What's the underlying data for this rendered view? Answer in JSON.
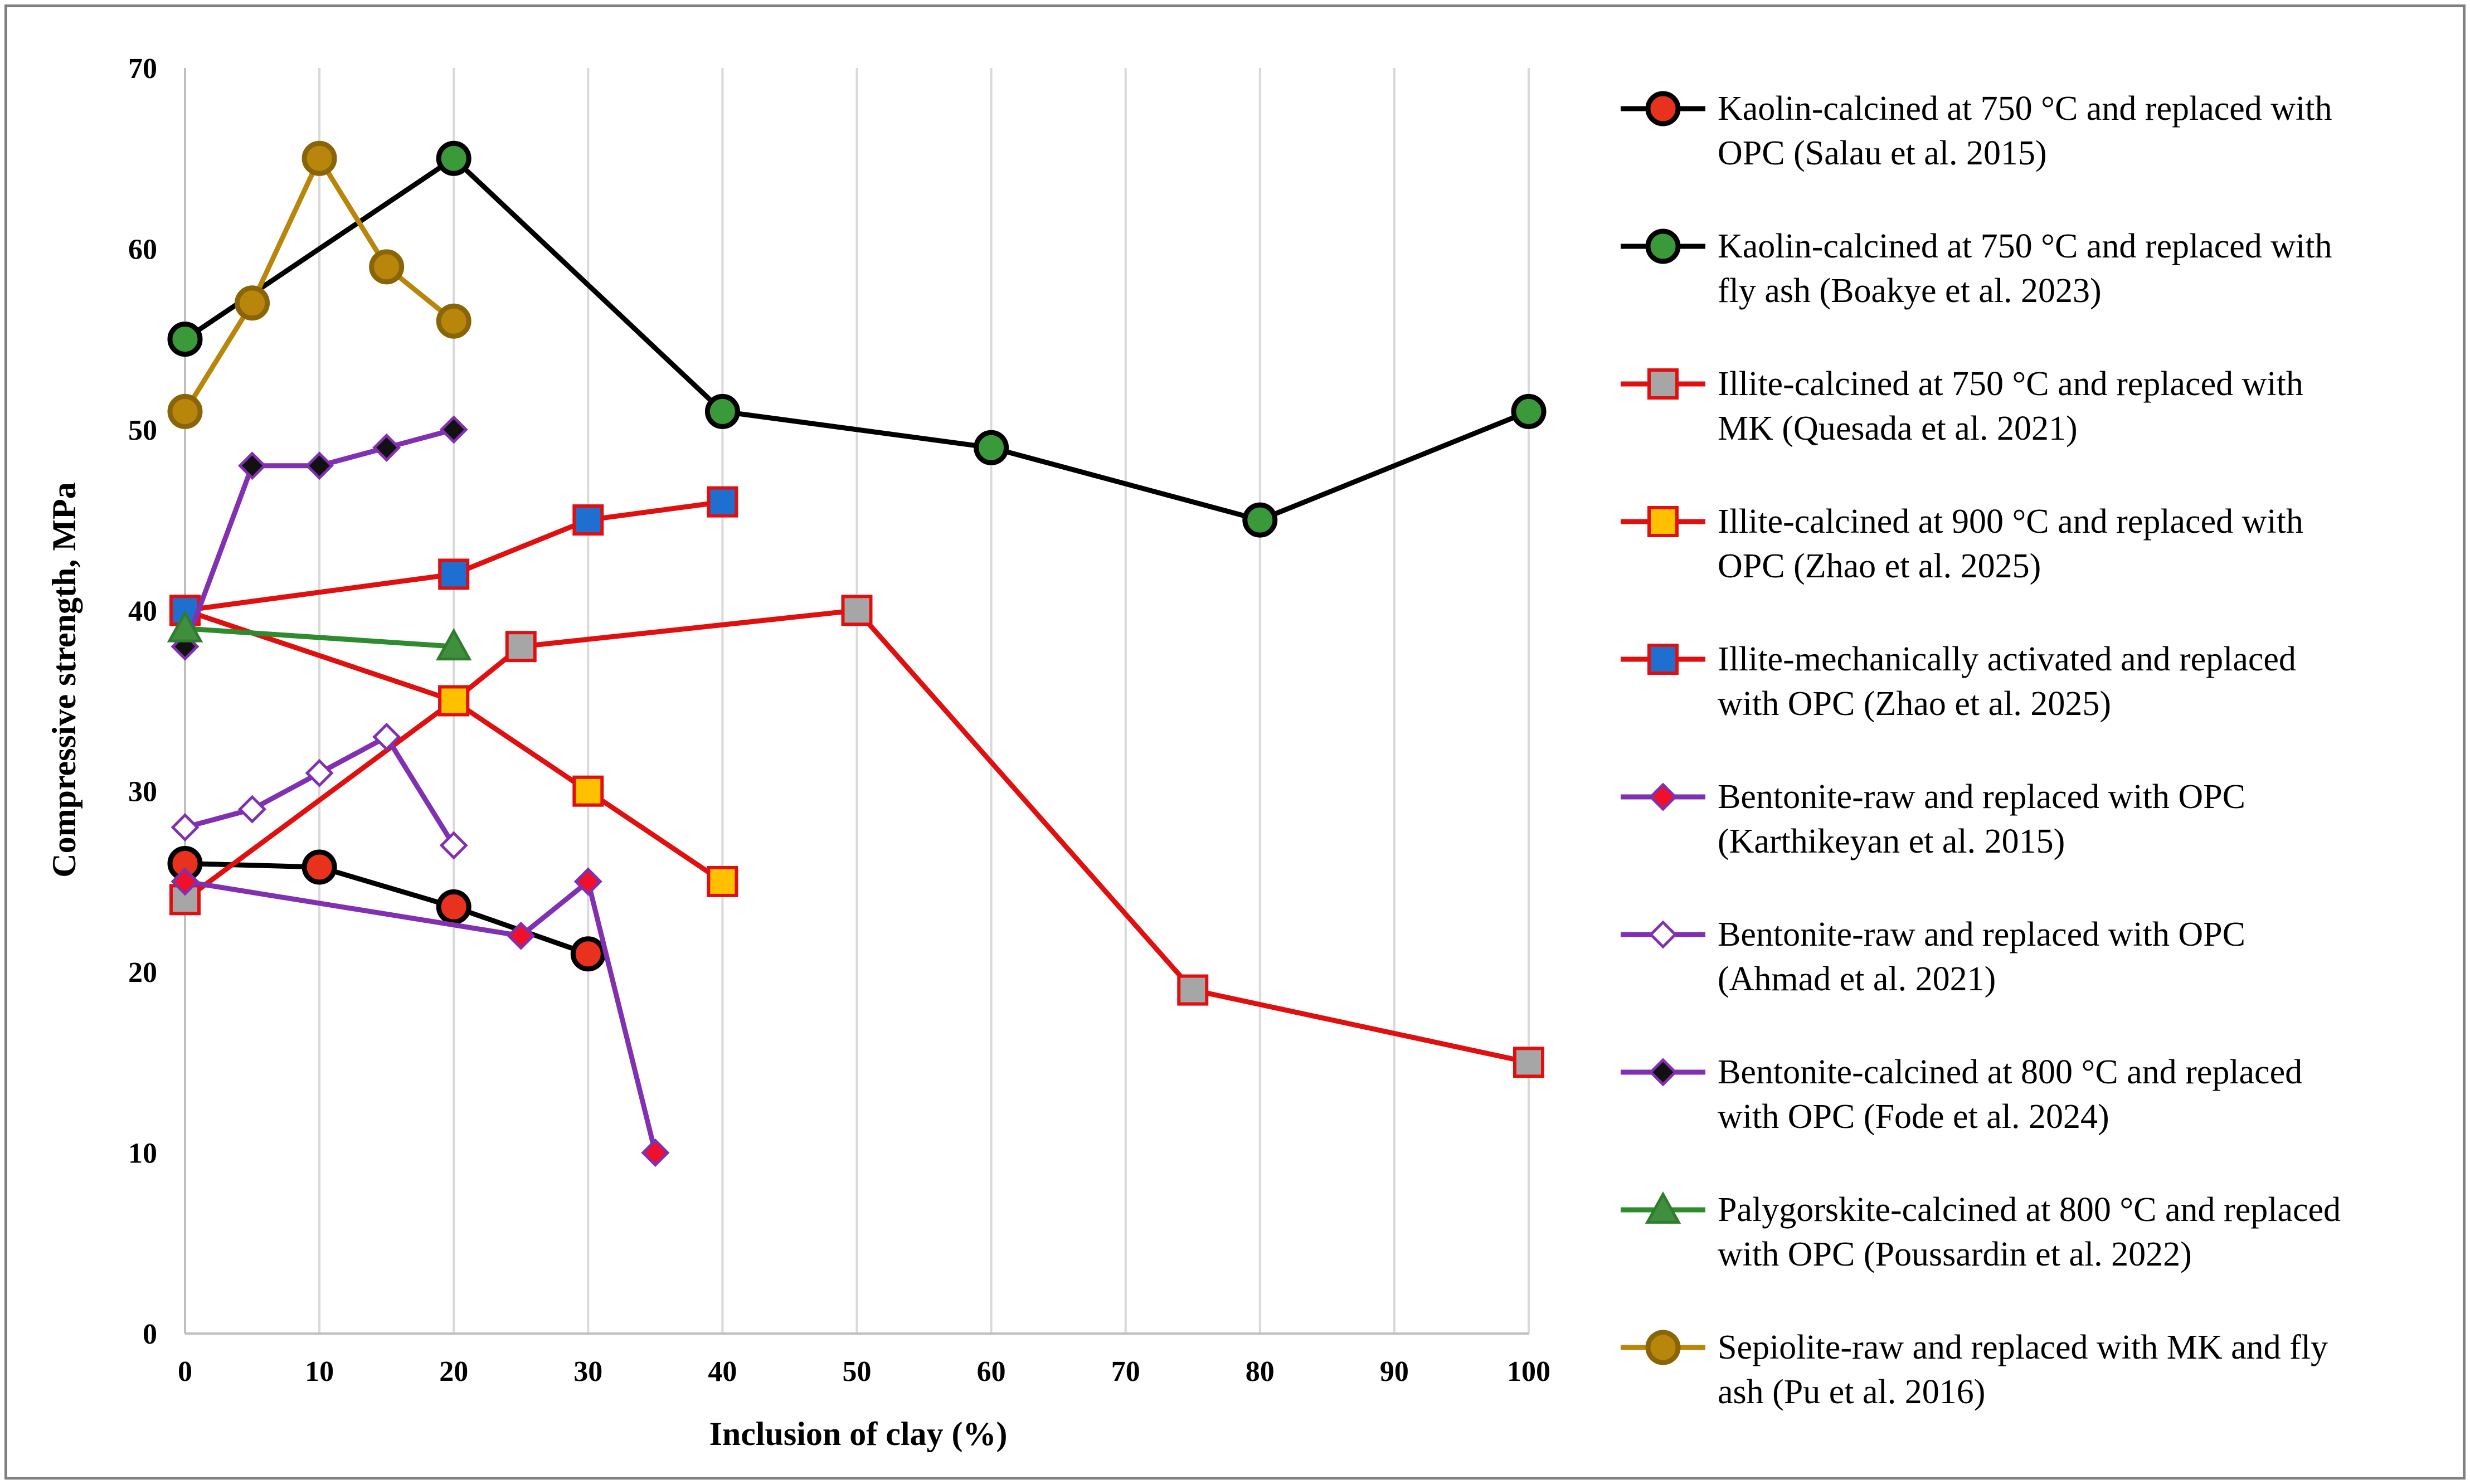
{
  "chart_data": {
    "type": "line",
    "title": "",
    "xlabel": "Inclusion of clay (%)",
    "ylabel": "Compressive strength, MPa",
    "xlim": [
      0,
      100
    ],
    "ylim": [
      0,
      70
    ],
    "x_ticks": [
      "0",
      "10",
      "20",
      "30",
      "40",
      "50",
      "60",
      "70",
      "80",
      "90",
      "100"
    ],
    "y_ticks": [
      "0",
      "10",
      "20",
      "30",
      "40",
      "50",
      "60",
      "70"
    ],
    "grid": "vertical",
    "legend_position": "right",
    "series": [
      {
        "name_lines": [
          "Kaolin-calcined at 750 °C and replaced with",
          "OPC (Salau et al. 2015)"
        ],
        "name": "Kaolin-calcined at 750 °C and replaced with OPC (Salau et al. 2015)",
        "line_color": "#000000",
        "marker": "circle",
        "marker_fill": "#e8321e",
        "marker_stroke": "#000000",
        "x": [
          0,
          10,
          20,
          30
        ],
        "y": [
          26,
          25.8,
          23.6,
          21
        ]
      },
      {
        "name_lines": [
          "Kaolin-calcined at 750 °C and replaced with",
          "fly ash (Boakye et al. 2023)"
        ],
        "name": "Kaolin-calcined at 750 °C and replaced with fly ash (Boakye et al. 2023)",
        "line_color": "#000000",
        "marker": "circle",
        "marker_fill": "#3a9a3a",
        "marker_stroke": "#000000",
        "x": [
          0,
          20,
          40,
          60,
          80,
          100
        ],
        "y": [
          55,
          65,
          51,
          49,
          45,
          51
        ]
      },
      {
        "name_lines": [
          "Illite-calcined at 750 °C and replaced with",
          "MK (Quesada et al. 2021)"
        ],
        "name": "Illite-calcined at 750 °C and replaced with MK (Quesada et al. 2021)",
        "line_color": "#e01010",
        "marker": "square",
        "marker_fill": "#a6a6a6",
        "marker_stroke": "#e01010",
        "x": [
          0,
          20,
          25,
          50,
          75,
          100
        ],
        "y": [
          24,
          35,
          38,
          40,
          19,
          15
        ]
      },
      {
        "name_lines": [
          "Illite-calcined at 900 °C and replaced with",
          "OPC (Zhao et al. 2025)"
        ],
        "name": "Illite-calcined at 900 °C and replaced with OPC (Zhao et al. 2025)",
        "line_color": "#e01010",
        "marker": "square",
        "marker_fill": "#ffc000",
        "marker_stroke": "#e01010",
        "x": [
          0,
          20,
          30,
          40
        ],
        "y": [
          40,
          35,
          30,
          25
        ]
      },
      {
        "name_lines": [
          "Illite-mechanically activated and replaced",
          "with OPC (Zhao et al. 2025)"
        ],
        "name": "Illite-mechanically activated and replaced with OPC (Zhao et al. 2025)",
        "line_color": "#e01010",
        "marker": "square",
        "marker_fill": "#1f6fd0",
        "marker_stroke": "#e01010",
        "x": [
          0,
          20,
          30,
          40
        ],
        "y": [
          40,
          42,
          45,
          46
        ]
      },
      {
        "name_lines": [
          "Bentonite-raw and replaced with OPC",
          "(Karthikeyan et al. 2015)"
        ],
        "name": "Bentonite-raw and replaced with OPC (Karthikeyan et al. 2015)",
        "line_color": "#8030b0",
        "marker": "diamond",
        "marker_fill": "#f0102a",
        "marker_stroke": "#8030b0",
        "x": [
          0,
          25,
          30,
          35
        ],
        "y": [
          25,
          22,
          25,
          10
        ]
      },
      {
        "name_lines": [
          "Bentonite-raw and replaced with OPC",
          "(Ahmad et al. 2021)"
        ],
        "name": "Bentonite-raw and replaced with OPC (Ahmad et al. 2021)",
        "line_color": "#8030b0",
        "marker": "diamond",
        "marker_fill": "#ffffff",
        "marker_stroke": "#8030b0",
        "x": [
          0,
          5,
          10,
          15,
          20
        ],
        "y": [
          28,
          29,
          31,
          33,
          27
        ]
      },
      {
        "name_lines": [
          "Bentonite-calcined at 800 °C and replaced",
          "with OPC (Fode et al. 2024)"
        ],
        "name": "Bentonite-calcined at 800 °C and replaced with OPC (Fode et al. 2024)",
        "line_color": "#8030b0",
        "marker": "diamond",
        "marker_fill": "#111111",
        "marker_stroke": "#8030b0",
        "x": [
          0,
          5,
          10,
          15,
          20
        ],
        "y": [
          38,
          48,
          48,
          49,
          50
        ]
      },
      {
        "name_lines": [
          "Palygorskite-calcined at 800 °C and replaced",
          "with OPC (Poussardin et al. 2022)"
        ],
        "name": "Palygorskite-calcined at 800 °C and replaced with OPC (Poussardin et al. 2022)",
        "line_color": "#2e8b2e",
        "marker": "triangle",
        "marker_fill": "#3f8f3f",
        "marker_stroke": "#2e7d2e",
        "x": [
          0,
          20
        ],
        "y": [
          39,
          38
        ]
      },
      {
        "name_lines": [
          "Sepiolite-raw and replaced with MK and fly",
          "ash (Pu et al. 2016)"
        ],
        "name": "Sepiolite-raw and replaced with MK and fly ash (Pu et al. 2016)",
        "line_color": "#b8860b",
        "marker": "circle",
        "marker_fill": "#b8860b",
        "marker_stroke": "#8a6508",
        "x": [
          0,
          5,
          10,
          15,
          20
        ],
        "y": [
          51,
          57,
          65,
          59,
          56
        ]
      }
    ]
  }
}
